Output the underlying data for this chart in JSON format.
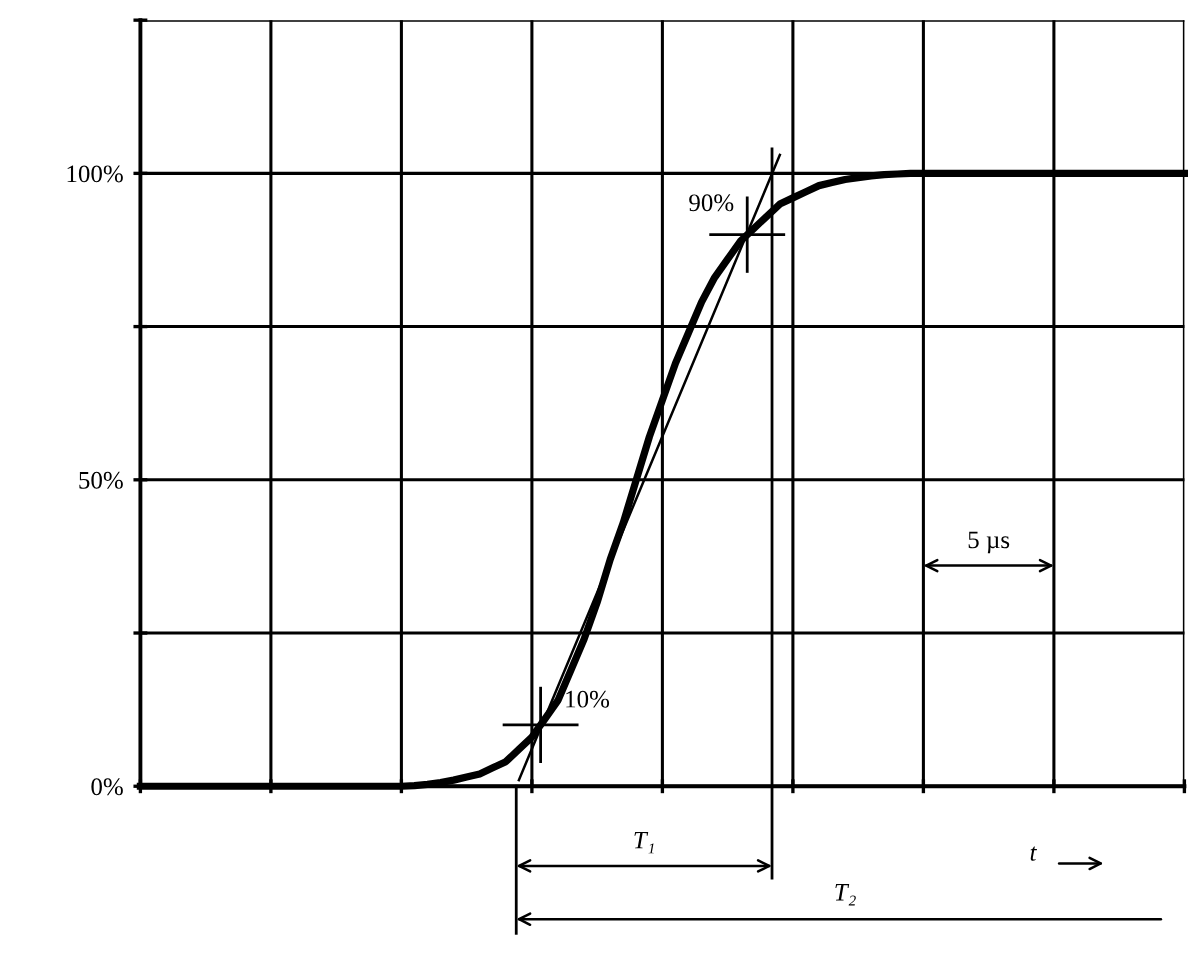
{
  "chart_data": {
    "type": "line",
    "categories": [
      null,
      null,
      null,
      null,
      null,
      null,
      null,
      null,
      null,
      null,
      null,
      null,
      null,
      null,
      null,
      null,
      null,
      null,
      null,
      null,
      null,
      null,
      null,
      null,
      null,
      null,
      null,
      null,
      null,
      null,
      null,
      null,
      null,
      null,
      null,
      null,
      null,
      null,
      null,
      null,
      null,
      null,
      null,
      null,
      null,
      null,
      null,
      null,
      null,
      null,
      null,
      null,
      null,
      null,
      null,
      null,
      null,
      null,
      null,
      null,
      null,
      null,
      null,
      null,
      null,
      null,
      null,
      null,
      null,
      null,
      null,
      null,
      null,
      null,
      null,
      null,
      null,
      null,
      null,
      null,
      null
    ],
    "ylim": [
      0,
      125
    ],
    "yticks": [
      {
        "value": 0,
        "label": "0%"
      },
      {
        "value": 25,
        "label": null
      },
      {
        "value": 50,
        "label": "50%"
      },
      {
        "value": 75,
        "label": null
      },
      {
        "value": 100,
        "label": "100%"
      },
      {
        "value": 125,
        "label": null
      }
    ],
    "tick_labels": "y",
    "grid": true,
    "marker": "none",
    "line_style": "solid",
    "series": [
      {
        "color": "#000000",
        "values": [
          0,
          0,
          0,
          0,
          0,
          0,
          0,
          0,
          0,
          0,
          0,
          0,
          0,
          0,
          0,
          0,
          0,
          0,
          0,
          0,
          0,
          0.1,
          0.3,
          0.6,
          1,
          1.5,
          2,
          3,
          4,
          6,
          8,
          11,
          14,
          19,
          24,
          30,
          37,
          43,
          50,
          57,
          63,
          69,
          74,
          79,
          83,
          86,
          89,
          91,
          93,
          95,
          96,
          97,
          98,
          98.5,
          99,
          99.3,
          99.6,
          99.8,
          99.9,
          100,
          100,
          100,
          100,
          100,
          100,
          100,
          100,
          100,
          100,
          100,
          100,
          100,
          100,
          100,
          100,
          100,
          100,
          100,
          100,
          100,
          100
        ]
      },
      {
        "color": "#000000",
        "values": [
          null,
          null,
          null,
          null,
          null,
          null,
          null,
          null,
          null,
          null,
          null,
          null,
          null,
          null,
          null,
          null,
          null,
          null,
          null,
          null,
          null,
          null,
          null,
          null,
          null,
          null,
          null,
          null,
          null,
          1,
          null,
          null,
          null,
          null,
          null,
          null,
          null,
          null,
          null,
          null,
          null,
          null,
          null,
          null,
          null,
          null,
          null,
          null,
          null,
          103,
          null,
          null,
          null,
          null,
          null,
          null,
          null,
          null,
          null,
          null,
          null,
          null,
          null,
          null,
          null,
          null,
          null,
          null,
          null,
          null,
          null,
          null,
          null,
          null,
          null,
          null,
          null,
          null,
          null,
          null,
          null
        ]
      }
    ],
    "annotations": [
      "10%",
      "90%",
      "5 µs",
      "T₁",
      "T₂",
      "t"
    ]
  }
}
